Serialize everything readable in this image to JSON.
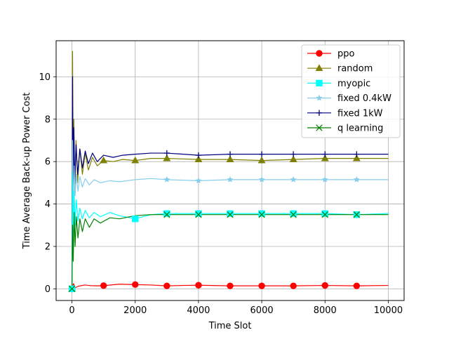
{
  "chart_data": {
    "type": "line",
    "title": "",
    "xlabel": "Time Slot",
    "ylabel": "Time Average Back-up Power Cost",
    "xlim": [
      -500,
      10500
    ],
    "ylim": [
      -0.55,
      11.7
    ],
    "xticks": [
      0,
      2000,
      4000,
      6000,
      8000,
      10000
    ],
    "yticks": [
      0,
      2,
      4,
      6,
      8,
      10
    ],
    "grid": true,
    "legend_position": "top-right",
    "series": [
      {
        "name": "ppo",
        "color": "#ff0000",
        "marker": "circle",
        "x": [
          0,
          50,
          100,
          200,
          400,
          600,
          800,
          1000,
          1500,
          2000,
          2500,
          3000,
          3500,
          4000,
          5000,
          6000,
          7000,
          8000,
          9000,
          10000
        ],
        "y": [
          0,
          0.25,
          0.05,
          0.12,
          0.18,
          0.15,
          0.14,
          0.15,
          0.22,
          0.2,
          0.18,
          0.14,
          0.16,
          0.17,
          0.14,
          0.14,
          0.14,
          0.16,
          0.14,
          0.16
        ],
        "marker_x": [
          0,
          1000,
          2000,
          3000,
          4000,
          5000,
          6000,
          7000,
          8000,
          9000
        ],
        "marker_y": [
          0,
          0.15,
          0.2,
          0.14,
          0.17,
          0.14,
          0.14,
          0.14,
          0.16,
          0.14
        ]
      },
      {
        "name": "random",
        "color": "#808000",
        "marker": "triangle-up",
        "x": [
          0,
          20,
          40,
          60,
          90,
          130,
          180,
          250,
          330,
          420,
          520,
          650,
          800,
          1000,
          1300,
          1600,
          2000,
          2500,
          3000,
          4000,
          5000,
          6000,
          7000,
          8000,
          9000,
          10000
        ],
        "y": [
          0,
          11.2,
          3.5,
          8.0,
          4.6,
          7.0,
          5.0,
          6.6,
          5.4,
          6.4,
          5.6,
          6.2,
          5.8,
          6.05,
          6.0,
          6.1,
          6.05,
          6.15,
          6.15,
          6.1,
          6.1,
          6.05,
          6.1,
          6.15,
          6.15,
          6.15
        ],
        "marker_x": [
          0,
          1000,
          2000,
          3000,
          4000,
          5000,
          6000,
          7000,
          8000,
          9000
        ],
        "marker_y": [
          0,
          6.05,
          6.05,
          6.15,
          6.1,
          6.1,
          6.05,
          6.1,
          6.15,
          6.15
        ]
      },
      {
        "name": "myopic",
        "color": "#00ffff",
        "marker": "square",
        "x": [
          0,
          20,
          40,
          70,
          100,
          140,
          190,
          250,
          330,
          420,
          550,
          700,
          900,
          1200,
          1500,
          2000,
          2500,
          3000,
          4000,
          5000,
          6000,
          7000,
          8000,
          9000,
          10000
        ],
        "y": [
          0,
          5.5,
          2.0,
          4.6,
          3.0,
          4.2,
          3.2,
          3.8,
          3.3,
          3.7,
          3.35,
          3.6,
          3.4,
          3.6,
          3.45,
          3.3,
          3.5,
          3.55,
          3.55,
          3.55,
          3.55,
          3.55,
          3.55,
          3.5,
          3.55
        ],
        "marker_x": [
          0,
          2000,
          3000,
          4000,
          5000,
          6000,
          7000,
          8000,
          9000
        ],
        "marker_y": [
          0,
          3.3,
          3.55,
          3.55,
          3.55,
          3.55,
          3.55,
          3.55,
          3.5
        ]
      },
      {
        "name": "fixed 0.4kW",
        "color": "#87ceeb",
        "marker": "star",
        "x": [
          0,
          20,
          40,
          70,
          100,
          140,
          190,
          250,
          330,
          420,
          550,
          700,
          900,
          1200,
          1500,
          2000,
          2500,
          3000,
          4000,
          5000,
          6000,
          7000,
          8000,
          9000,
          10000
        ],
        "y": [
          0,
          7.0,
          3.5,
          5.8,
          4.4,
          5.4,
          4.6,
          5.3,
          4.8,
          5.2,
          4.9,
          5.15,
          5.0,
          5.1,
          5.05,
          5.15,
          5.2,
          5.15,
          5.1,
          5.15,
          5.15,
          5.15,
          5.15,
          5.15,
          5.15
        ],
        "marker_x": [
          0,
          3000,
          4000,
          5000,
          6000,
          7000,
          8000,
          9000
        ],
        "marker_y": [
          0,
          5.15,
          5.1,
          5.15,
          5.15,
          5.15,
          5.15,
          5.15
        ]
      },
      {
        "name": "fixed 1kW",
        "color": "#000080",
        "marker": "plus",
        "x": [
          0,
          20,
          40,
          60,
          90,
          130,
          180,
          250,
          330,
          420,
          520,
          650,
          800,
          1000,
          1300,
          1600,
          2000,
          2500,
          3000,
          4000,
          5000,
          6000,
          7000,
          8000,
          9000,
          10000
        ],
        "y": [
          0,
          10.0,
          4.0,
          7.6,
          5.0,
          6.8,
          5.4,
          6.6,
          5.7,
          6.5,
          5.9,
          6.4,
          6.0,
          6.3,
          6.2,
          6.3,
          6.35,
          6.4,
          6.4,
          6.3,
          6.35,
          6.35,
          6.35,
          6.35,
          6.35,
          6.35
        ],
        "marker_x": [
          0,
          3000,
          4000,
          5000,
          6000,
          7000,
          8000,
          9000
        ],
        "marker_y": [
          0,
          6.4,
          6.3,
          6.35,
          6.35,
          6.35,
          6.35,
          6.35
        ]
      },
      {
        "name": "q learning",
        "color": "#008000",
        "marker": "x",
        "x": [
          0,
          20,
          40,
          70,
          100,
          140,
          190,
          250,
          330,
          420,
          550,
          700,
          900,
          1200,
          1500,
          2000,
          2500,
          3000,
          4000,
          5000,
          6000,
          7000,
          8000,
          9000,
          10000
        ],
        "y": [
          0,
          3.0,
          1.3,
          3.6,
          2.0,
          3.4,
          2.4,
          3.3,
          2.7,
          3.3,
          2.9,
          3.3,
          3.1,
          3.35,
          3.3,
          3.45,
          3.5,
          3.5,
          3.5,
          3.5,
          3.5,
          3.5,
          3.5,
          3.5,
          3.5
        ],
        "marker_x": [
          0,
          3000,
          4000,
          5000,
          6000,
          7000,
          8000,
          9000
        ],
        "marker_y": [
          0,
          3.5,
          3.5,
          3.5,
          3.5,
          3.5,
          3.5,
          3.5
        ]
      }
    ]
  }
}
